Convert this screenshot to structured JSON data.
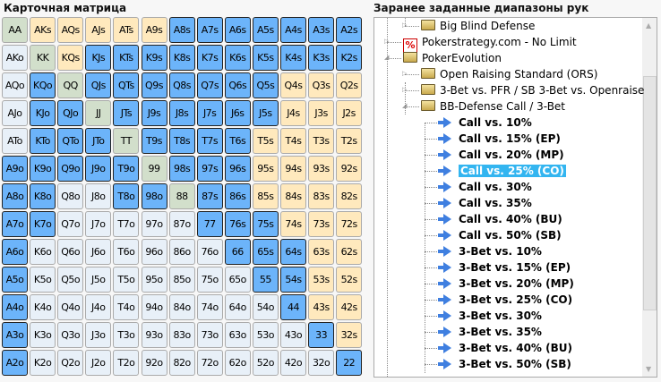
{
  "matrix": {
    "title": "Карточная матрица",
    "colors": {
      "b": "#6cb4fa",
      "t": "#ffe9bd",
      "g": "#d2dfcb",
      "l": "#e8f0f8"
    },
    "rows": [
      {
        "hands": [
          "AA",
          "AKs",
          "AQs",
          "AJs",
          "ATs",
          "A9s",
          "A8s",
          "A7s",
          "A6s",
          "A5s",
          "A4s",
          "A3s",
          "A2s"
        ],
        "states": "gtttttbbbbbbb"
      },
      {
        "hands": [
          "AKo",
          "KK",
          "KQs",
          "KJs",
          "KTs",
          "K9s",
          "K8s",
          "K7s",
          "K6s",
          "K5s",
          "K4s",
          "K3s",
          "K2s"
        ],
        "states": "lgtbbbbbbbbbb"
      },
      {
        "hands": [
          "AQo",
          "KQo",
          "QQ",
          "QJs",
          "QTs",
          "Q9s",
          "Q8s",
          "Q7s",
          "Q6s",
          "Q5s",
          "Q4s",
          "Q3s",
          "Q2s"
        ],
        "states": "lbgbbbbbbbttt"
      },
      {
        "hands": [
          "AJo",
          "KJo",
          "QJo",
          "JJ",
          "JTs",
          "J9s",
          "J8s",
          "J7s",
          "J6s",
          "J5s",
          "J4s",
          "J3s",
          "J2s"
        ],
        "states": "lbbgbbbbbbttt"
      },
      {
        "hands": [
          "ATo",
          "KTo",
          "QTo",
          "JTo",
          "TT",
          "T9s",
          "T8s",
          "T7s",
          "T6s",
          "T5s",
          "T4s",
          "T3s",
          "T2s"
        ],
        "states": "lbbbgbbbbtttt"
      },
      {
        "hands": [
          "A9o",
          "K9o",
          "Q9o",
          "J9o",
          "T9o",
          "99",
          "98s",
          "97s",
          "96s",
          "95s",
          "94s",
          "93s",
          "92s"
        ],
        "states": "bbbbbgbbbtttt"
      },
      {
        "hands": [
          "A8o",
          "K8o",
          "Q8o",
          "J8o",
          "T8o",
          "98o",
          "88",
          "87s",
          "86s",
          "85s",
          "84s",
          "83s",
          "82s"
        ],
        "states": "bbllbbgbbtttt"
      },
      {
        "hands": [
          "A7o",
          "K7o",
          "Q7o",
          "J7o",
          "T7o",
          "97o",
          "87o",
          "77",
          "76s",
          "75s",
          "74s",
          "73s",
          "72s"
        ],
        "states": "bblllllbbbttt"
      },
      {
        "hands": [
          "A6o",
          "K6o",
          "Q6o",
          "J6o",
          "T6o",
          "96o",
          "86o",
          "76o",
          "66",
          "65s",
          "64s",
          "63s",
          "62s"
        ],
        "states": "blllllllbbbtt"
      },
      {
        "hands": [
          "A5o",
          "K5o",
          "Q5o",
          "J5o",
          "T5o",
          "95o",
          "85o",
          "75o",
          "65o",
          "55",
          "54s",
          "53s",
          "52s"
        ],
        "states": "bllllllllbbtt"
      },
      {
        "hands": [
          "A4o",
          "K4o",
          "Q4o",
          "J4o",
          "T4o",
          "94o",
          "84o",
          "74o",
          "64o",
          "54o",
          "44",
          "43s",
          "42s"
        ],
        "states": "blllllllllbtt"
      },
      {
        "hands": [
          "A3o",
          "K3o",
          "Q3o",
          "J3o",
          "T3o",
          "93o",
          "83o",
          "73o",
          "63o",
          "53o",
          "43o",
          "33",
          "32s"
        ],
        "states": "bllllllllllbt"
      },
      {
        "hands": [
          "A2o",
          "K2o",
          "Q2o",
          "J2o",
          "T2o",
          "92o",
          "82o",
          "72o",
          "62o",
          "52o",
          "42o",
          "32o",
          "22"
        ],
        "states": "blllllllllllb"
      }
    ]
  },
  "tree": {
    "title": "Заранее заданные диапазоны рук",
    "items": [
      {
        "label": "Big Blind Defense",
        "level": 1,
        "icon": "folder",
        "bold": false
      },
      {
        "label": "Pokerstrategy.com - No Limit",
        "level": 0,
        "icon": "pokerstrategy",
        "bold": false
      },
      {
        "label": "PokerEvolution",
        "level": 0,
        "icon": "folder",
        "bold": false,
        "expanded": true
      },
      {
        "label": "Open Raising Standard (ORS)",
        "level": 1,
        "icon": "folder",
        "bold": false
      },
      {
        "label": "3-Bet vs. PFR / SB 3-Bet vs. Openraise",
        "level": 1,
        "icon": "folder",
        "bold": false
      },
      {
        "label": "BB-Defense Call / 3-Bet",
        "level": 1,
        "icon": "folder",
        "bold": false,
        "expanded": true
      },
      {
        "label": "Call vs. 10%",
        "level": 2,
        "icon": "arrow",
        "bold": true
      },
      {
        "label": "Call vs. 15% (EP)",
        "level": 2,
        "icon": "arrow",
        "bold": true
      },
      {
        "label": "Call vs. 20% (MP)",
        "level": 2,
        "icon": "arrow",
        "bold": true
      },
      {
        "label": "Call vs. 25% (CO)",
        "level": 2,
        "icon": "arrow",
        "bold": true,
        "selected": true
      },
      {
        "label": "Call vs. 30%",
        "level": 2,
        "icon": "arrow",
        "bold": true
      },
      {
        "label": "Call vs. 35%",
        "level": 2,
        "icon": "arrow",
        "bold": true
      },
      {
        "label": "Call vs. 40% (BU)",
        "level": 2,
        "icon": "arrow",
        "bold": true
      },
      {
        "label": "Call vs. 50% (SB)",
        "level": 2,
        "icon": "arrow",
        "bold": true
      },
      {
        "label": "3-Bet vs. 10%",
        "level": 2,
        "icon": "arrow",
        "bold": true
      },
      {
        "label": "3-Bet vs. 15% (EP)",
        "level": 2,
        "icon": "arrow",
        "bold": true
      },
      {
        "label": "3-Bet vs. 20% (MP)",
        "level": 2,
        "icon": "arrow",
        "bold": true
      },
      {
        "label": "3-Bet vs. 25% (CO)",
        "level": 2,
        "icon": "arrow",
        "bold": true
      },
      {
        "label": "3-Bet vs. 30%",
        "level": 2,
        "icon": "arrow",
        "bold": true
      },
      {
        "label": "3-Bet vs. 35%",
        "level": 2,
        "icon": "arrow",
        "bold": true
      },
      {
        "label": "3-Bet vs. 40% (BU)",
        "level": 2,
        "icon": "arrow",
        "bold": true
      },
      {
        "label": "3-Bet vs. 50% (SB)",
        "level": 2,
        "icon": "arrow",
        "bold": true
      }
    ]
  }
}
